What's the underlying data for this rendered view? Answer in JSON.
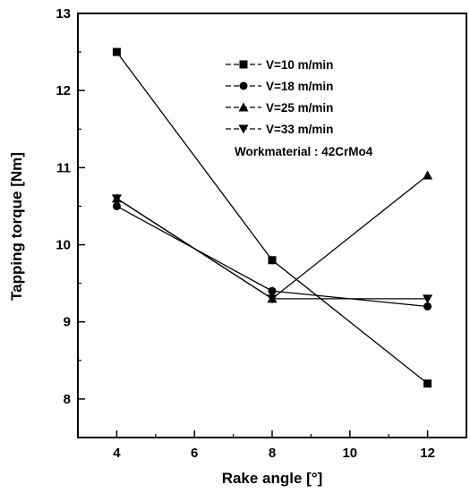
{
  "chart_data": {
    "type": "line",
    "xlabel": "Rake angle [°]",
    "ylabel": "Tapping torque [Nm]",
    "xlim": [
      3,
      13
    ],
    "ylim": [
      7.5,
      13
    ],
    "xticks": [
      4,
      6,
      8,
      10,
      12
    ],
    "yticks": [
      8,
      9,
      10,
      11,
      12,
      13
    ],
    "x": [
      4,
      8,
      12
    ],
    "series": [
      {
        "name": "V=10 m/min",
        "marker": "square",
        "values": [
          12.5,
          9.8,
          8.2
        ]
      },
      {
        "name": "V=18 m/min",
        "marker": "circle",
        "values": [
          10.5,
          9.4,
          9.2
        ]
      },
      {
        "name": "V=25 m/min",
        "marker": "triangle-up",
        "values": [
          10.6,
          9.3,
          10.9
        ]
      },
      {
        "name": "V=33 m/min",
        "marker": "triangle-down",
        "values": [
          10.6,
          9.3,
          9.3
        ]
      }
    ],
    "annotation": "Workmaterial : 42CrMo4",
    "legend_position": "top-right",
    "grid": false
  }
}
